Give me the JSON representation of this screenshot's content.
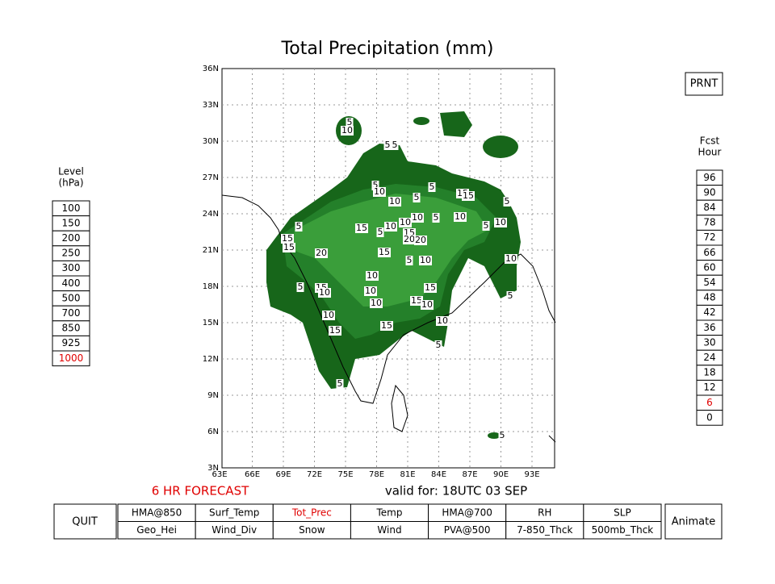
{
  "title": "Total Precipitation (mm)",
  "map": {
    "lat_labels": [
      "36N",
      "33N",
      "30N",
      "27N",
      "24N",
      "21N",
      "18N",
      "15N",
      "12N",
      "9N",
      "6N",
      "3N"
    ],
    "lon_labels": [
      "63E",
      "66E",
      "69E",
      "72E",
      "75E",
      "78E",
      "81E",
      "84E",
      "87E",
      "90E",
      "93E"
    ],
    "contour_labels": [
      "5",
      "10",
      "5",
      "5",
      "5",
      "10",
      "10",
      "5",
      "5",
      "15",
      "15",
      "5",
      "10",
      "5",
      "10",
      "10",
      "5",
      "10",
      "10",
      "15",
      "5",
      "15",
      "20",
      "20",
      "5",
      "15",
      "15",
      "20",
      "15",
      "5",
      "10",
      "10",
      "10",
      "5",
      "15",
      "10",
      "10",
      "15",
      "5",
      "10",
      "15",
      "10",
      "10",
      "15",
      "15",
      "10",
      "5",
      "5",
      "5"
    ]
  },
  "level_panel": {
    "title": [
      "Level",
      "(hPa)"
    ],
    "items": [
      "100",
      "150",
      "200",
      "250",
      "300",
      "400",
      "500",
      "700",
      "850",
      "925",
      "1000"
    ],
    "selected": "1000"
  },
  "fcst_panel": {
    "title": [
      "Fcst",
      "Hour"
    ],
    "items": [
      "96",
      "90",
      "84",
      "78",
      "72",
      "66",
      "60",
      "54",
      "48",
      "42",
      "36",
      "30",
      "24",
      "18",
      "12",
      "6",
      "0"
    ],
    "selected": "6"
  },
  "print_button": "PRNT",
  "forecast_label": "6 HR FORECAST",
  "valid_label": "valid for: 18UTC 03 SEP",
  "quit_button": "QUIT",
  "animate_button": "Animate",
  "menu": {
    "rows": [
      [
        "HMA@850",
        "Surf_Temp",
        "Tot_Prec",
        "Temp",
        "HMA@700",
        "RH",
        "SLP"
      ],
      [
        "Geo_Hei",
        "Wind_Div",
        "Snow",
        "Wind",
        "PVA@500",
        "7-850_Thck",
        "500mb_Thck"
      ]
    ],
    "selected": "Tot_Prec"
  }
}
